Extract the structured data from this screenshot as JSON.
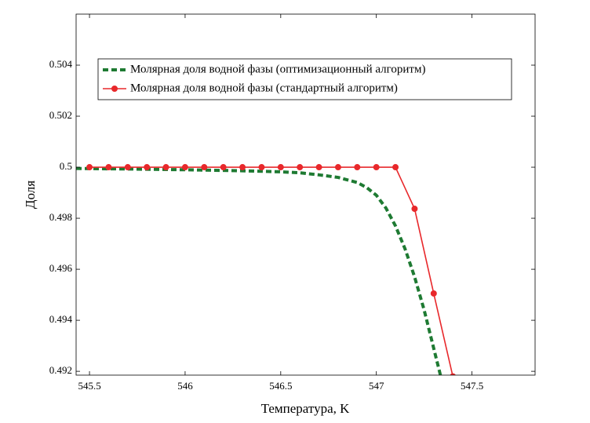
{
  "chart_data": {
    "type": "line",
    "xlabel": "Температура, K",
    "ylabel": "Доля",
    "xlim": [
      545.43,
      547.83
    ],
    "ylim": [
      0.49185,
      0.506
    ],
    "xticks": [
      545.5,
      546,
      546.5,
      547,
      547.5
    ],
    "yticks": [
      0.492,
      0.494,
      0.496,
      0.498,
      0.5,
      0.502,
      0.504
    ],
    "legend": "upper left",
    "series": [
      {
        "name": "Молярная доля водной фазы (оптимизационный алгоритм)",
        "color": "#1e7a32",
        "style": "dashed",
        "x": [
          545.43,
          545.7,
          546,
          546.3,
          546.5,
          546.6,
          546.7,
          546.8,
          546.9,
          546.95,
          547,
          547.05,
          547.1,
          547.15,
          547.2,
          547.25,
          547.3,
          547.34
        ],
        "values": [
          0.49995,
          0.49993,
          0.4999,
          0.49986,
          0.49982,
          0.49978,
          0.4997,
          0.4996,
          0.4994,
          0.4992,
          0.4989,
          0.4984,
          0.4977,
          0.4968,
          0.4957,
          0.4944,
          0.4929,
          0.4917
        ]
      },
      {
        "name": "Молярная доля водной фазы (стандартный алгоритм)",
        "color": "#e8282b",
        "style": "solid",
        "marker": "circle",
        "x": [
          545.5,
          545.6,
          545.7,
          545.8,
          545.9,
          546,
          546.1,
          546.2,
          546.3,
          546.4,
          546.5,
          546.6,
          546.7,
          546.8,
          546.9,
          547,
          547.1,
          547.2,
          547.3,
          547.4
        ],
        "values": [
          0.5,
          0.5,
          0.5,
          0.5,
          0.5,
          0.5,
          0.5,
          0.5,
          0.5,
          0.5,
          0.5,
          0.5,
          0.5,
          0.5,
          0.5,
          0.5,
          0.5,
          0.49837,
          0.49505,
          0.4918
        ]
      }
    ]
  }
}
